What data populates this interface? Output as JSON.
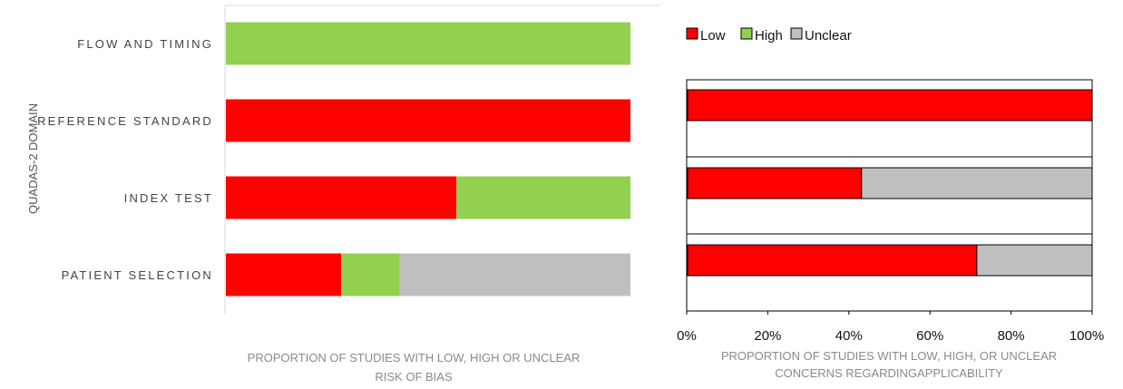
{
  "chart_data": [
    {
      "type": "bar",
      "stacked": true,
      "orientation": "horizontal",
      "categories": [
        "FLOW AND TIMING",
        "REFERENCE STANDARD",
        "INDEX TEST",
        "PATIENT SELECTION"
      ],
      "series": [
        {
          "name": "Low",
          "values": [
            0,
            100,
            57,
            28.5
          ]
        },
        {
          "name": "High",
          "values": [
            100,
            0,
            43,
            14.5
          ]
        },
        {
          "name": "Unclear",
          "values": [
            0,
            0,
            0,
            57
          ]
        }
      ],
      "colors": {
        "Low": "#ff0000",
        "High": "#92d050",
        "Unclear": "#bfbfbf"
      },
      "ylabel": "QUADAS-2 DOMAIN",
      "xlabel": [
        "PROPORTION OF STUDIES WITH LOW, HIGH OR UNCLEAR",
        "RISK OF BIAS"
      ],
      "xlim": [
        0,
        100
      ],
      "grid": false
    },
    {
      "type": "bar",
      "stacked": true,
      "orientation": "horizontal",
      "categories": [
        "REFERENCE STANDARD",
        "INDEX TEST",
        "PATIENT SELECTION"
      ],
      "series": [
        {
          "name": "Low",
          "values": [
            100,
            43,
            71.5
          ]
        },
        {
          "name": "High",
          "values": [
            0,
            0,
            0
          ]
        },
        {
          "name": "Unclear",
          "values": [
            0,
            57,
            28.5
          ]
        }
      ],
      "colors": {
        "Low": "#ff0000",
        "High": "#92d050",
        "Unclear": "#bfbfbf"
      },
      "legend": {
        "entries": [
          "Low",
          "High",
          "Unclear"
        ],
        "placement": "top-left"
      },
      "xticks": [
        "0%",
        "20%",
        "40%",
        "60%",
        "80%",
        "100%"
      ],
      "xlabel": [
        "PROPORTION OF STUDIES WITH LOW, HIGH, OR UNCLEAR",
        "CONCERNS REGARDINGAPPLICABILITY"
      ],
      "xlim": [
        0,
        100
      ],
      "grid": true
    }
  ]
}
